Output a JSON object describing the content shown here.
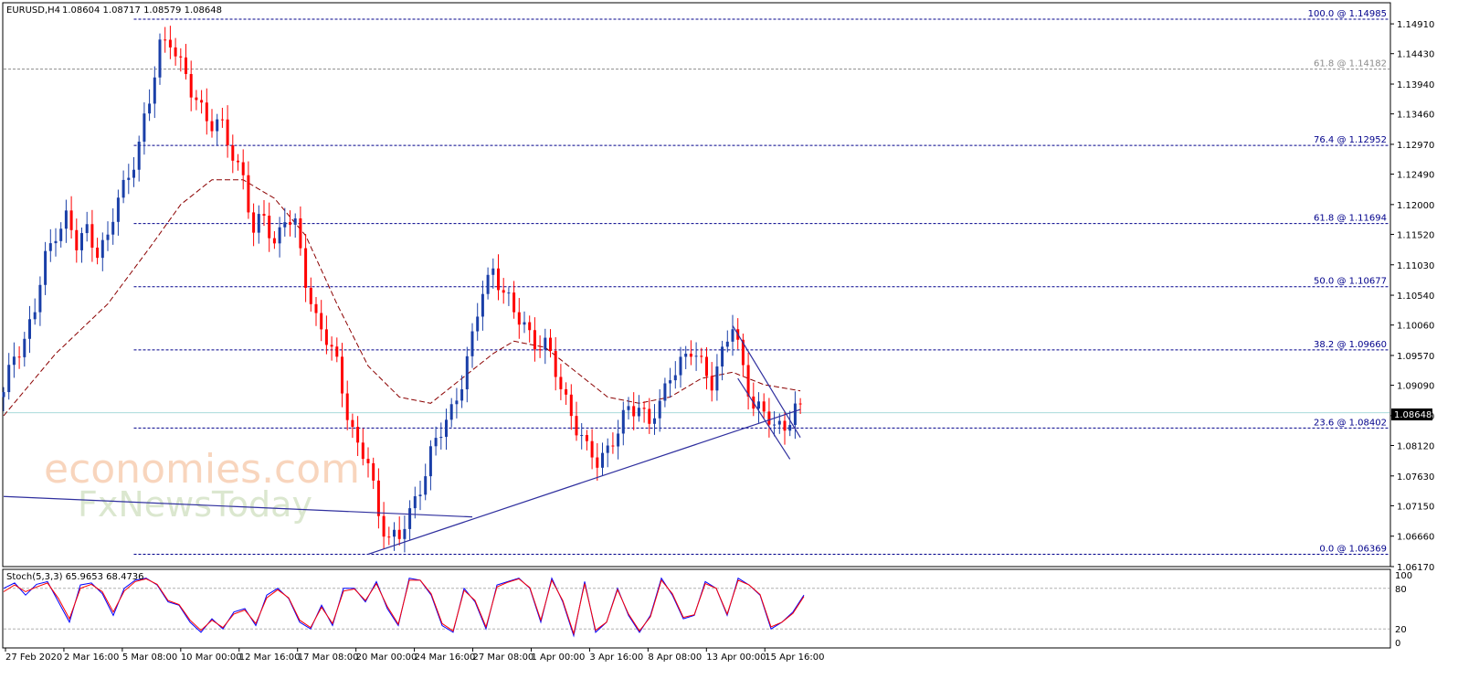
{
  "header": {
    "symbol_label": "EURUSD,H4",
    "ohlc_label": "1.08604 1.08717 1.08579 1.08648"
  },
  "watermark": {
    "line1": "economies.com",
    "line2": "FxNewsToday"
  },
  "colors": {
    "bull": "#1a3fa8",
    "bear": "#ff0000",
    "fib": "#00008b",
    "fib_secondary": "#8c8c8c",
    "ma": "#8b0000",
    "trendline": "#2f2f9e",
    "current_price_line": "#a8dcdc",
    "stoch_main": "#0000ff",
    "stoch_signal": "#ff0000"
  },
  "chart_data": [
    {
      "type": "candlestick",
      "title": "EURUSD,H4",
      "ylim": [
        1.0617,
        1.1525
      ],
      "price_ticks": [
        "1.14910",
        "1.14430",
        "1.13940",
        "1.13460",
        "1.12970",
        "1.12490",
        "1.12000",
        "1.11520",
        "1.11030",
        "1.10540",
        "1.10060",
        "1.09570",
        "1.09090",
        "1.08600",
        "1.08120",
        "1.07630",
        "1.07150",
        "1.06660",
        "1.06170"
      ],
      "current_price": "1.08648",
      "x_tick_labels": [
        "27 Feb 2020",
        "2 Mar 16:00",
        "5 Mar 08:00",
        "10 Mar 00:00",
        "12 Mar 16:00",
        "17 Mar 08:00",
        "20 Mar 00:00",
        "24 Mar 16:00",
        "27 Mar 08:00",
        "1 Apr 00:00",
        "3 Apr 16:00",
        "8 Apr 08:00",
        "13 Apr 00:00",
        "15 Apr 16:00"
      ],
      "fib_levels": [
        {
          "label": "100.0 @ 1.14985",
          "value": 1.14985,
          "style": "primary"
        },
        {
          "label": "61.8 @ 1.14182",
          "value": 1.14182,
          "style": "secondary"
        },
        {
          "label": "76.4 @ 1.12952",
          "value": 1.12952,
          "style": "primary"
        },
        {
          "label": "61.8 @ 1.11694",
          "value": 1.11694,
          "style": "primary"
        },
        {
          "label": "50.0 @ 1.10677",
          "value": 1.10677,
          "style": "primary"
        },
        {
          "label": "38.2 @ 1.09660",
          "value": 1.0966,
          "style": "primary"
        },
        {
          "label": "23.6 @ 1.08402",
          "value": 1.08402,
          "style": "primary"
        },
        {
          "label": "0.0 @ 1.06369",
          "value": 1.06369,
          "style": "primary"
        }
      ],
      "price_path": [
        [
          0,
          1.089
        ],
        [
          2,
          1.096
        ],
        [
          4,
          1.0985
        ],
        [
          6,
          1.103
        ],
        [
          8,
          1.111
        ],
        [
          10,
          1.116
        ],
        [
          12,
          1.118
        ],
        [
          14,
          1.113
        ],
        [
          16,
          1.116
        ],
        [
          18,
          1.113
        ],
        [
          20,
          1.114
        ],
        [
          22,
          1.121
        ],
        [
          24,
          1.125
        ],
        [
          26,
          1.13
        ],
        [
          28,
          1.136
        ],
        [
          30,
          1.146
        ],
        [
          32,
          1.147
        ],
        [
          34,
          1.142
        ],
        [
          36,
          1.138
        ],
        [
          38,
          1.136
        ],
        [
          40,
          1.133
        ],
        [
          42,
          1.132
        ],
        [
          44,
          1.128
        ],
        [
          46,
          1.125
        ],
        [
          48,
          1.115
        ],
        [
          50,
          1.118
        ],
        [
          52,
          1.114
        ],
        [
          54,
          1.118
        ],
        [
          56,
          1.116
        ],
        [
          58,
          1.108
        ],
        [
          60,
          1.102
        ],
        [
          62,
          1.098
        ],
        [
          64,
          1.094
        ],
        [
          66,
          1.087
        ],
        [
          68,
          1.081
        ],
        [
          70,
          1.078
        ],
        [
          72,
          1.07
        ],
        [
          74,
          1.067
        ],
        [
          76,
          1.066
        ],
        [
          78,
          1.07
        ],
        [
          80,
          1.075
        ],
        [
          82,
          1.08
        ],
        [
          84,
          1.083
        ],
        [
          86,
          1.087
        ],
        [
          88,
          1.092
        ],
        [
          90,
          1.098
        ],
        [
          92,
          1.106
        ],
        [
          94,
          1.11
        ],
        [
          96,
          1.106
        ],
        [
          98,
          1.102
        ],
        [
          100,
          1.101
        ],
        [
          102,
          1.098
        ],
        [
          104,
          1.097
        ],
        [
          106,
          1.093
        ],
        [
          108,
          1.089
        ],
        [
          110,
          1.084
        ],
        [
          112,
          1.08
        ],
        [
          114,
          1.079
        ],
        [
          116,
          1.081
        ],
        [
          118,
          1.083
        ],
        [
          120,
          1.087
        ],
        [
          122,
          1.088
        ],
        [
          124,
          1.085
        ],
        [
          126,
          1.087
        ],
        [
          128,
          1.093
        ],
        [
          130,
          1.095
        ],
        [
          132,
          1.096
        ],
        [
          134,
          1.094
        ],
        [
          136,
          1.092
        ],
        [
          138,
          1.096
        ],
        [
          140,
          1.1
        ],
        [
          142,
          1.094
        ],
        [
          144,
          1.088
        ],
        [
          146,
          1.086
        ],
        [
          148,
          1.084
        ],
        [
          150,
          1.085
        ],
        [
          152,
          1.087
        ],
        [
          153,
          1.0865
        ]
      ],
      "ma_path": [
        [
          0,
          1.086
        ],
        [
          10,
          1.096
        ],
        [
          20,
          1.104
        ],
        [
          28,
          1.113
        ],
        [
          34,
          1.12
        ],
        [
          40,
          1.124
        ],
        [
          46,
          1.124
        ],
        [
          52,
          1.121
        ],
        [
          58,
          1.115
        ],
        [
          64,
          1.104
        ],
        [
          70,
          1.094
        ],
        [
          76,
          1.089
        ],
        [
          82,
          1.088
        ],
        [
          88,
          1.092
        ],
        [
          94,
          1.096
        ],
        [
          98,
          1.098
        ],
        [
          104,
          1.097
        ],
        [
          110,
          1.093
        ],
        [
          116,
          1.089
        ],
        [
          122,
          1.088
        ],
        [
          128,
          1.089
        ],
        [
          134,
          1.092
        ],
        [
          140,
          1.093
        ],
        [
          146,
          1.091
        ],
        [
          153,
          1.09
        ]
      ],
      "trendlines": [
        {
          "from": [
            0,
            1.073
          ],
          "to": [
            90,
            1.0697
          ]
        },
        {
          "from": [
            70,
            1.0637
          ],
          "to": [
            153,
            1.087
          ]
        },
        {
          "from": [
            140,
            1.1005
          ],
          "to": [
            153,
            1.0825
          ]
        },
        {
          "from": [
            141,
            1.092
          ],
          "to": [
            151,
            1.079
          ]
        }
      ]
    },
    {
      "type": "line",
      "title": "Stoch(5,3,3) 65.9653 68.4736",
      "ylim": [
        0,
        100
      ],
      "y_ticks": [
        "100",
        "80",
        "20",
        "0"
      ],
      "series": [
        {
          "name": "main",
          "values": [
            80,
            88,
            70,
            86,
            90,
            60,
            30,
            85,
            88,
            72,
            40,
            80,
            92,
            95,
            85,
            60,
            55,
            30,
            15,
            35,
            20,
            45,
            50,
            25,
            70,
            80,
            65,
            30,
            20,
            55,
            25,
            80,
            80,
            60,
            90,
            50,
            25,
            95,
            92,
            70,
            25,
            15,
            80,
            60,
            20,
            85,
            90,
            95,
            80,
            30,
            95,
            60,
            10,
            90,
            15,
            30,
            80,
            40,
            15,
            40,
            95,
            70,
            35,
            40,
            90,
            80,
            40,
            95,
            85,
            70,
            20,
            30,
            45,
            70
          ]
        },
        {
          "name": "signal",
          "values": [
            75,
            85,
            75,
            82,
            88,
            65,
            35,
            80,
            86,
            75,
            45,
            76,
            90,
            94,
            86,
            62,
            56,
            33,
            18,
            33,
            22,
            42,
            48,
            28,
            66,
            78,
            66,
            33,
            22,
            52,
            28,
            76,
            79,
            62,
            87,
            53,
            27,
            92,
            92,
            72,
            28,
            17,
            77,
            62,
            23,
            82,
            89,
            94,
            81,
            33,
            92,
            62,
            13,
            87,
            18,
            30,
            78,
            42,
            17,
            38,
            92,
            72,
            37,
            41,
            87,
            80,
            42,
            92,
            85,
            71,
            23,
            30,
            43,
            68
          ]
        }
      ]
    }
  ]
}
